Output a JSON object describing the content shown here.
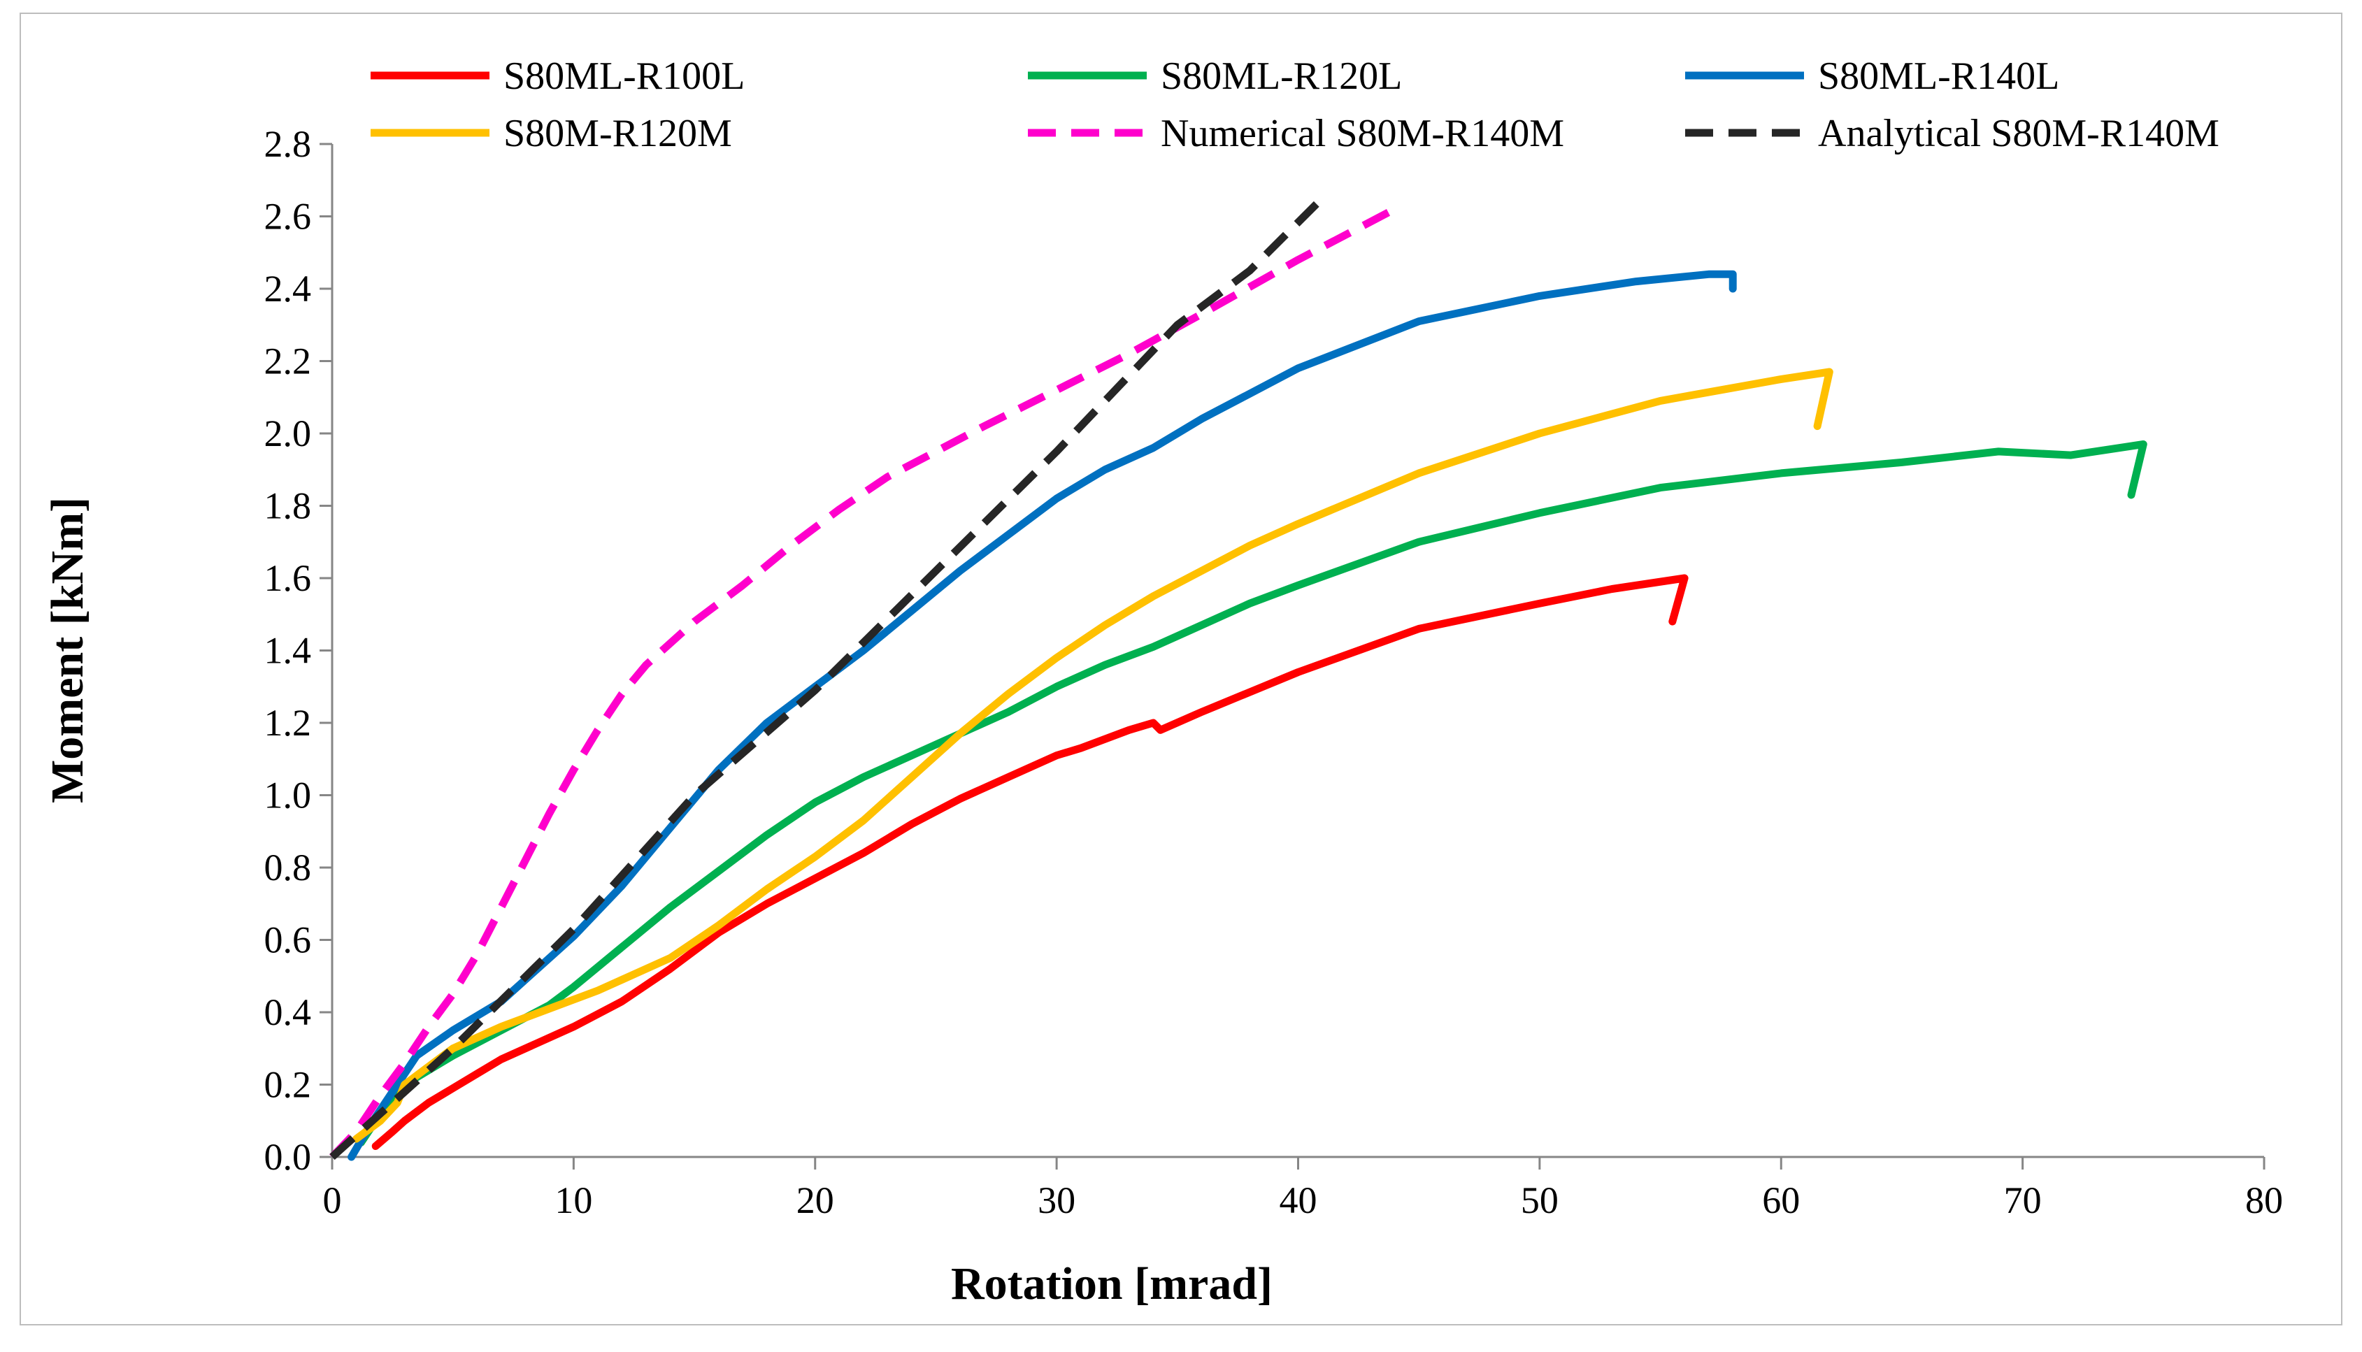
{
  "chart_data": {
    "type": "line",
    "title": "",
    "xlabel": "Rotation [mrad]",
    "ylabel": "Moment [kNm]",
    "xlim": [
      0,
      80
    ],
    "ylim": [
      0,
      2.8
    ],
    "xticks": [
      "0",
      "10",
      "20",
      "30",
      "40",
      "50",
      "60",
      "70",
      "80"
    ],
    "yticks": [
      "0.0",
      "0.2",
      "0.4",
      "0.6",
      "0.8",
      "1.0",
      "1.2",
      "1.4",
      "1.6",
      "1.8",
      "2.0",
      "2.2",
      "2.4",
      "2.6",
      "2.8"
    ],
    "grid": false,
    "legend_position": "top",
    "series": [
      {
        "name": "S80ML-R100L",
        "color": "#ff0000",
        "dashed": false,
        "points": [
          [
            1.8,
            0.03
          ],
          [
            2.5,
            0.07
          ],
          [
            3,
            0.1
          ],
          [
            4,
            0.15
          ],
          [
            5,
            0.19
          ],
          [
            6,
            0.23
          ],
          [
            7,
            0.27
          ],
          [
            8,
            0.3
          ],
          [
            10,
            0.36
          ],
          [
            12,
            0.43
          ],
          [
            14,
            0.52
          ],
          [
            16,
            0.62
          ],
          [
            18,
            0.7
          ],
          [
            20,
            0.77
          ],
          [
            22,
            0.84
          ],
          [
            24,
            0.92
          ],
          [
            26,
            0.99
          ],
          [
            28,
            1.05
          ],
          [
            30,
            1.11
          ],
          [
            31,
            1.13
          ],
          [
            33,
            1.18
          ],
          [
            34,
            1.2
          ],
          [
            34.3,
            1.18
          ],
          [
            36,
            1.23
          ],
          [
            40,
            1.34
          ],
          [
            45,
            1.46
          ],
          [
            50,
            1.53
          ],
          [
            53,
            1.57
          ],
          [
            56,
            1.6
          ],
          [
            55.5,
            1.48
          ]
        ]
      },
      {
        "name": "S80ML-R120L",
        "color": "#00b050",
        "dashed": false,
        "points": [
          [
            1.2,
            0.04
          ],
          [
            2,
            0.12
          ],
          [
            3,
            0.2
          ],
          [
            5,
            0.28
          ],
          [
            7,
            0.35
          ],
          [
            9,
            0.42
          ],
          [
            10,
            0.47
          ],
          [
            12,
            0.58
          ],
          [
            14,
            0.69
          ],
          [
            16,
            0.79
          ],
          [
            18,
            0.89
          ],
          [
            20,
            0.98
          ],
          [
            22,
            1.05
          ],
          [
            24,
            1.11
          ],
          [
            26,
            1.17
          ],
          [
            28,
            1.23
          ],
          [
            30,
            1.3
          ],
          [
            32,
            1.36
          ],
          [
            34,
            1.41
          ],
          [
            36,
            1.47
          ],
          [
            38,
            1.53
          ],
          [
            40,
            1.58
          ],
          [
            45,
            1.7
          ],
          [
            50,
            1.78
          ],
          [
            55,
            1.85
          ],
          [
            60,
            1.89
          ],
          [
            65,
            1.92
          ],
          [
            69,
            1.95
          ],
          [
            72,
            1.94
          ],
          [
            75,
            1.97
          ],
          [
            74.5,
            1.83
          ]
        ]
      },
      {
        "name": "S80ML-R140L",
        "color": "#0070c0",
        "dashed": false,
        "points": [
          [
            0.8,
            0.0
          ],
          [
            1.5,
            0.08
          ],
          [
            2.5,
            0.18
          ],
          [
            3.5,
            0.28
          ],
          [
            5,
            0.35
          ],
          [
            7,
            0.43
          ],
          [
            8,
            0.49
          ],
          [
            10,
            0.61
          ],
          [
            12,
            0.75
          ],
          [
            14,
            0.91
          ],
          [
            16,
            1.07
          ],
          [
            18,
            1.2
          ],
          [
            20,
            1.3
          ],
          [
            22,
            1.4
          ],
          [
            24,
            1.51
          ],
          [
            26,
            1.62
          ],
          [
            28,
            1.72
          ],
          [
            30,
            1.82
          ],
          [
            32,
            1.9
          ],
          [
            34,
            1.96
          ],
          [
            36,
            2.04
          ],
          [
            38,
            2.11
          ],
          [
            40,
            2.18
          ],
          [
            45,
            2.31
          ],
          [
            50,
            2.38
          ],
          [
            54,
            2.42
          ],
          [
            57,
            2.44
          ],
          [
            58,
            2.44
          ],
          [
            58,
            2.4
          ]
        ]
      },
      {
        "name": "S80M-R120M",
        "color": "#ffc000",
        "dashed": false,
        "points": [
          [
            1,
            0.05
          ],
          [
            2,
            0.1
          ],
          [
            2.7,
            0.15
          ],
          [
            3,
            0.2
          ],
          [
            4,
            0.25
          ],
          [
            5,
            0.3
          ],
          [
            7,
            0.36
          ],
          [
            9,
            0.41
          ],
          [
            11,
            0.46
          ],
          [
            14,
            0.55
          ],
          [
            16,
            0.64
          ],
          [
            18,
            0.74
          ],
          [
            20,
            0.83
          ],
          [
            22,
            0.93
          ],
          [
            24,
            1.05
          ],
          [
            26,
            1.17
          ],
          [
            28,
            1.28
          ],
          [
            30,
            1.38
          ],
          [
            32,
            1.47
          ],
          [
            34,
            1.55
          ],
          [
            36,
            1.62
          ],
          [
            38,
            1.69
          ],
          [
            40,
            1.75
          ],
          [
            45,
            1.89
          ],
          [
            50,
            2.0
          ],
          [
            55,
            2.09
          ],
          [
            60,
            2.15
          ],
          [
            62,
            2.17
          ],
          [
            61.5,
            2.02
          ]
        ]
      },
      {
        "name": "Numerical S80M-R140M",
        "color": "#ff00cc",
        "dashed": true,
        "points": [
          [
            0,
            0
          ],
          [
            1,
            0.07
          ],
          [
            2,
            0.17
          ],
          [
            3,
            0.26
          ],
          [
            4,
            0.36
          ],
          [
            5,
            0.45
          ],
          [
            6,
            0.56
          ],
          [
            7,
            0.69
          ],
          [
            8,
            0.82
          ],
          [
            9,
            0.95
          ],
          [
            10,
            1.07
          ],
          [
            11,
            1.18
          ],
          [
            12,
            1.28
          ],
          [
            13,
            1.36
          ],
          [
            15,
            1.48
          ],
          [
            17,
            1.58
          ],
          [
            19,
            1.69
          ],
          [
            21,
            1.79
          ],
          [
            23,
            1.88
          ],
          [
            25,
            1.95
          ],
          [
            27,
            2.02
          ],
          [
            30,
            2.12
          ],
          [
            33,
            2.22
          ],
          [
            36,
            2.33
          ],
          [
            40,
            2.48
          ],
          [
            44,
            2.62
          ]
        ]
      },
      {
        "name": "Analytical S80M-R140M",
        "color": "#262626",
        "dashed": true,
        "points": [
          [
            0,
            0
          ],
          [
            5,
            0.3
          ],
          [
            10,
            0.63
          ],
          [
            15,
            1.0
          ],
          [
            20,
            1.29
          ],
          [
            25,
            1.62
          ],
          [
            30,
            1.95
          ],
          [
            35,
            2.3
          ],
          [
            38,
            2.45
          ],
          [
            41,
            2.65
          ]
        ]
      }
    ]
  }
}
